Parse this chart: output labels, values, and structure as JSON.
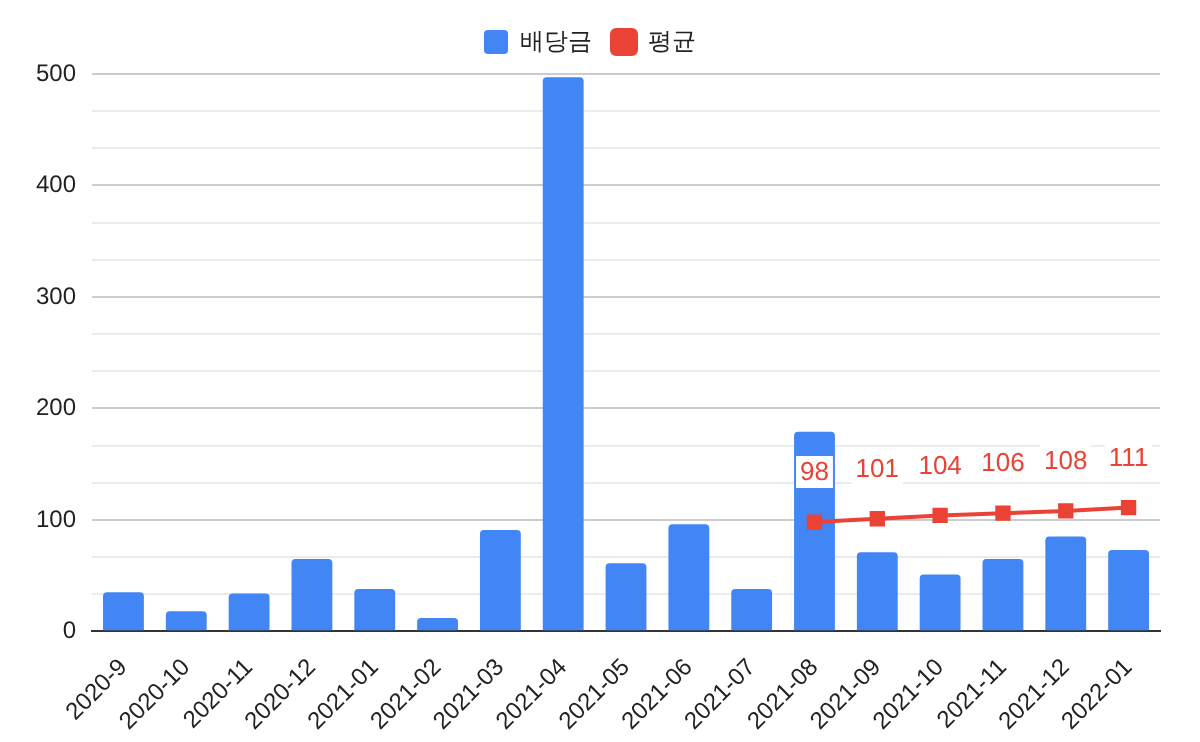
{
  "chart_data": {
    "type": "bar",
    "categories": [
      "2020-9",
      "2020-10",
      "2020-11",
      "2020-12",
      "2021-01",
      "2021-02",
      "2021-03",
      "2021-04",
      "2021-05",
      "2021-06",
      "2021-07",
      "2021-08",
      "2021-09",
      "2021-10",
      "2021-11",
      "2021-12",
      "2022-01"
    ],
    "series": [
      {
        "name": "배당금",
        "color": "#4285f4",
        "values": [
          35,
          18,
          34,
          65,
          38,
          12,
          91,
          497,
          61,
          96,
          38,
          179,
          71,
          51,
          65,
          85,
          73
        ]
      },
      {
        "name": "평균",
        "type": "line",
        "color": "#ea4335",
        "marker": "square",
        "values": [
          null,
          null,
          null,
          null,
          null,
          null,
          null,
          null,
          null,
          null,
          null,
          98,
          101,
          104,
          106,
          108,
          111
        ],
        "value_labels": [
          null,
          null,
          null,
          null,
          null,
          null,
          null,
          null,
          null,
          null,
          null,
          "98",
          "101",
          "104",
          "106",
          "108",
          "111"
        ]
      }
    ],
    "ylim": [
      0,
      500
    ],
    "yticks": [
      0,
      {
        "value": 33.33,
        "label": null
      },
      {
        "value": 66.67,
        "label": null
      },
      100,
      {
        "value": 133.33,
        "label": null
      },
      {
        "value": 166.67,
        "label": null
      },
      200,
      {
        "value": 233.33,
        "label": null
      },
      {
        "value": 266.67,
        "label": null
      },
      300,
      {
        "value": 333.33,
        "label": null
      },
      {
        "value": 366.67,
        "label": null
      },
      400,
      {
        "value": 433.33,
        "label": null
      },
      {
        "value": 466.67,
        "label": null
      },
      500
    ],
    "grid": "y",
    "legend": "top"
  }
}
